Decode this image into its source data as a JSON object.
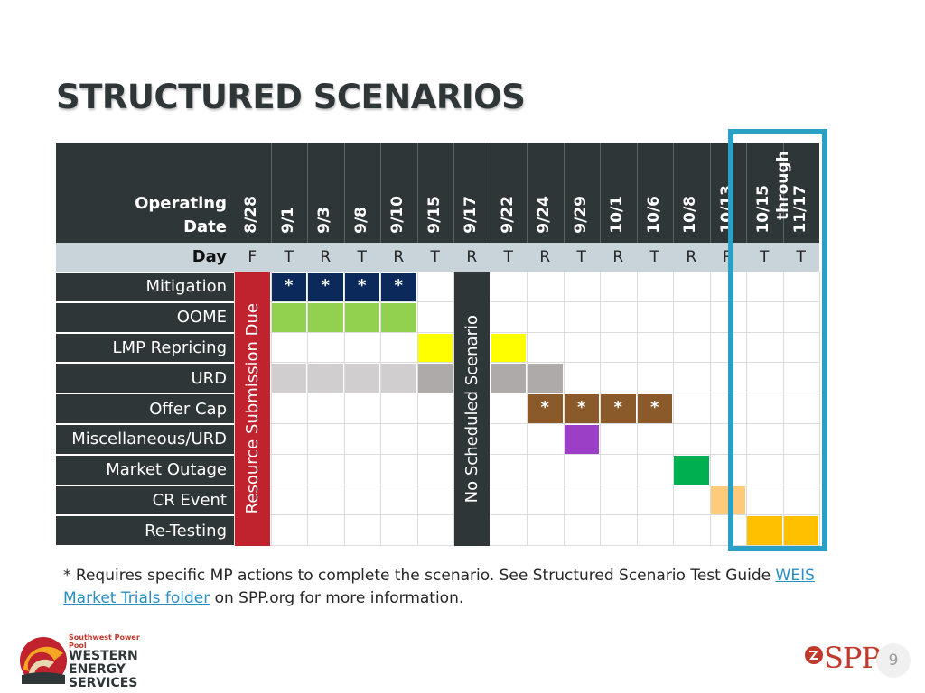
{
  "slide": {
    "title": "STRUCTURED SCENARIOS",
    "page_number": "9"
  },
  "header": {
    "operating_label_line1": "Operating",
    "operating_label_line2": "Date",
    "day_label": "Day"
  },
  "columns": [
    {
      "date": "8/28",
      "day": "F"
    },
    {
      "date": "9/1",
      "day": "T"
    },
    {
      "date": "9/3",
      "day": "R"
    },
    {
      "date": "9/8",
      "day": "T"
    },
    {
      "date": "9/10",
      "day": "R"
    },
    {
      "date": "9/15",
      "day": "T"
    },
    {
      "date": "9/17",
      "day": "R"
    },
    {
      "date": "9/22",
      "day": "T"
    },
    {
      "date": "9/24",
      "day": "R"
    },
    {
      "date": "9/29",
      "day": "T"
    },
    {
      "date": "10/1",
      "day": "R"
    },
    {
      "date": "10/6",
      "day": "T"
    },
    {
      "date": "10/8",
      "day": "R"
    },
    {
      "date": "10/13",
      "day": "R"
    },
    {
      "date": "10/15",
      "day": "T"
    },
    {
      "date": "11/17",
      "day": "T"
    }
  ],
  "through_label": "through",
  "rows": [
    {
      "label": "Mitigation"
    },
    {
      "label": "OOME"
    },
    {
      "label": "LMP Repricing"
    },
    {
      "label": "URD"
    },
    {
      "label": "Offer Cap"
    },
    {
      "label": "Miscellaneous/URD"
    },
    {
      "label": "Market Outage"
    },
    {
      "label": "CR Event"
    },
    {
      "label": "Re-Testing"
    }
  ],
  "column_banners": [
    {
      "col": 0,
      "text": "Resource Submission Due",
      "color": "#c0222e"
    },
    {
      "col": 6,
      "text": "No Scheduled Scenario",
      "color": "#2f3638"
    }
  ],
  "filled_cells": [
    {
      "row": 0,
      "col": 1,
      "color": "#0b2a5b",
      "star": true
    },
    {
      "row": 0,
      "col": 2,
      "color": "#0b2a5b",
      "star": true
    },
    {
      "row": 0,
      "col": 3,
      "color": "#0b2a5b",
      "star": true
    },
    {
      "row": 0,
      "col": 4,
      "color": "#0b2a5b",
      "star": true
    },
    {
      "row": 1,
      "col": 1,
      "color": "#92d050"
    },
    {
      "row": 1,
      "col": 2,
      "color": "#92d050"
    },
    {
      "row": 1,
      "col": 3,
      "color": "#92d050"
    },
    {
      "row": 1,
      "col": 4,
      "color": "#92d050"
    },
    {
      "row": 2,
      "col": 5,
      "color": "#ffff00"
    },
    {
      "row": 2,
      "col": 7,
      "color": "#ffff00"
    },
    {
      "row": 3,
      "col": 1,
      "color": "#d0cece"
    },
    {
      "row": 3,
      "col": 2,
      "color": "#d0cece"
    },
    {
      "row": 3,
      "col": 3,
      "color": "#d0cece"
    },
    {
      "row": 3,
      "col": 4,
      "color": "#d0cece"
    },
    {
      "row": 3,
      "col": 5,
      "color": "#aeaaaa"
    },
    {
      "row": 3,
      "col": 7,
      "color": "#aeaaaa"
    },
    {
      "row": 3,
      "col": 8,
      "color": "#aeaaaa"
    },
    {
      "row": 4,
      "col": 8,
      "color": "#8b5a2b",
      "star": true
    },
    {
      "row": 4,
      "col": 9,
      "color": "#8b5a2b",
      "star": true
    },
    {
      "row": 4,
      "col": 10,
      "color": "#8b5a2b",
      "star": true
    },
    {
      "row": 4,
      "col": 11,
      "color": "#8b5a2b",
      "star": true
    },
    {
      "row": 5,
      "col": 9,
      "color": "#9b3fc6"
    },
    {
      "row": 6,
      "col": 12,
      "color": "#00b050"
    },
    {
      "row": 7,
      "col": 13,
      "color": "#ffca7a"
    },
    {
      "row": 8,
      "col": 14,
      "color": "#ffc000"
    },
    {
      "row": 8,
      "col": 15,
      "color": "#ffc000"
    }
  ],
  "star_symbol": "*",
  "footnote": {
    "prefix": "* Requires specific MP actions to complete the scenario. See Structured Scenario Test Guide ",
    "link_text": "WEIS Market Trials folder",
    "suffix": " on SPP.org for more information."
  },
  "logos": {
    "wes_small": "Southwest Power Pool",
    "wes_line1": "WESTERN",
    "wes_line2": "ENERGY",
    "wes_line3": "SERVICES",
    "spp": "SPP"
  },
  "colors": {
    "header_bg": "#2f3638",
    "day_bg": "#c8d4da",
    "highlight": "#2aa1c4"
  }
}
